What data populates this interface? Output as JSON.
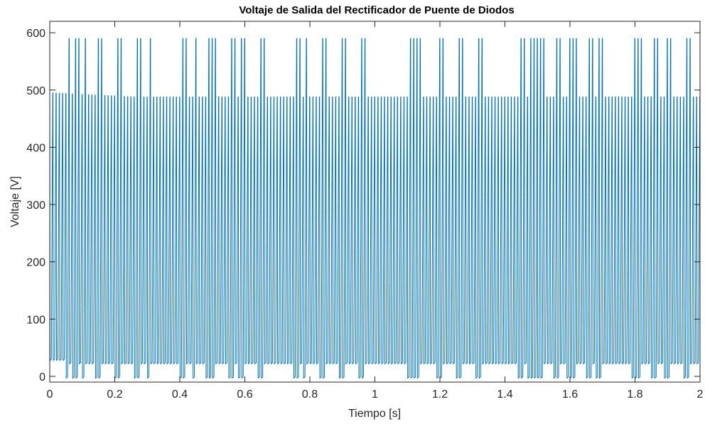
{
  "chart_data": {
    "type": "line",
    "title": "Voltaje de Salida del Rectificador de Puente de Diodos",
    "xlabel": "Tiempo [s]",
    "ylabel": "Voltaje [V]",
    "xlim": [
      0,
      2
    ],
    "ylim": [
      -10,
      620
    ],
    "xticks": [
      0,
      0.2,
      0.4,
      0.6,
      0.8,
      1,
      1.2,
      1.4,
      1.6,
      1.8,
      2
    ],
    "xtick_labels": [
      "0",
      "0.2",
      "0.4",
      "0.6",
      "0.8",
      "1",
      "1.2",
      "1.4",
      "1.6",
      "1.8",
      "2"
    ],
    "yticks": [
      0,
      100,
      200,
      300,
      400,
      500,
      600
    ],
    "ytick_labels": [
      "0",
      "100",
      "200",
      "300",
      "400",
      "500",
      "600"
    ],
    "grid": false,
    "box": true,
    "series": [
      {
        "color": "#0072BD",
        "description_values": {
          "x_start": 0,
          "x_end": 2,
          "approx_cycles": 200,
          "typical_peak": 488,
          "early_peak": 495,
          "typical_trough": 22,
          "spike_peak": 590,
          "spike_trough": -3,
          "spike_times": [
            0.055,
            0.08,
            0.105,
            0.15,
            0.155,
            0.21,
            0.215,
            0.27,
            0.305,
            0.41,
            0.445,
            0.49,
            0.5,
            0.56,
            0.59,
            0.595,
            0.65,
            0.76,
            0.785,
            0.84,
            0.845,
            0.9,
            0.905,
            0.96,
            0.965,
            1.11,
            1.13,
            1.2,
            1.205,
            1.26,
            1.265,
            1.32,
            1.325,
            1.45,
            1.48,
            1.5,
            1.51,
            1.56,
            1.6,
            1.61,
            1.66,
            1.69,
            1.8,
            1.81,
            1.855,
            1.86,
            1.9,
            1.905,
            1.955,
            1.96
          ]
        }
      }
    ]
  }
}
